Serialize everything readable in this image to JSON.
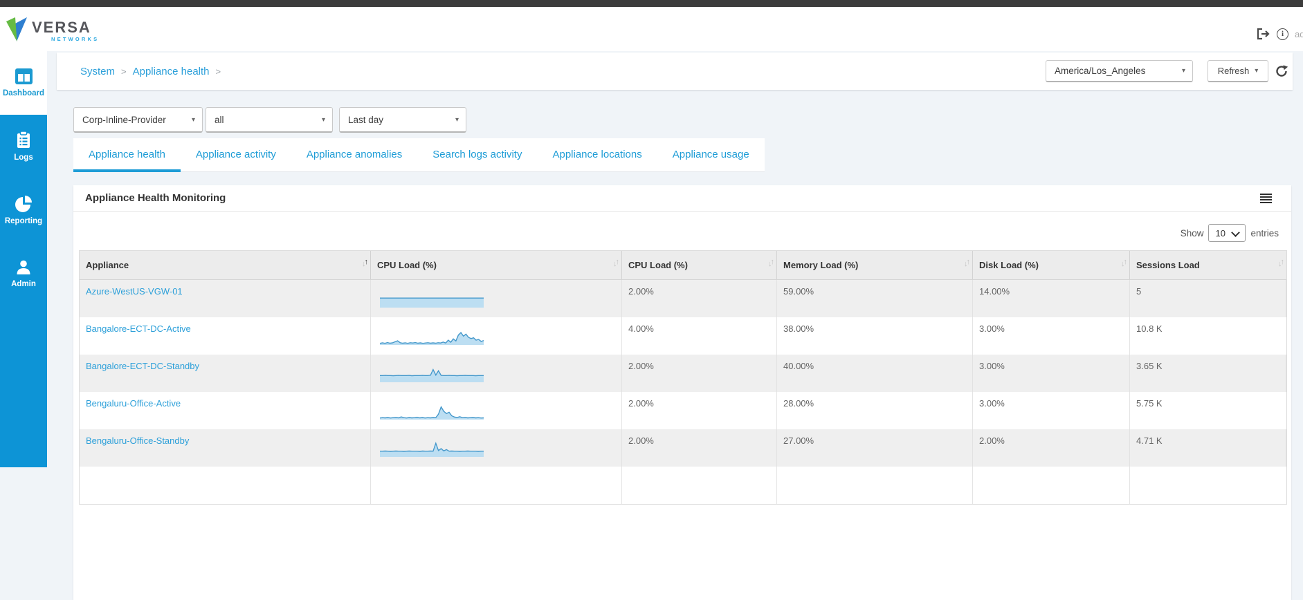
{
  "header": {
    "brand": "VERSA",
    "brand_sub": "NETWORKS",
    "user": "admin"
  },
  "icons": {
    "logout": "logout-icon",
    "info": "info-icon",
    "refresh": "refresh-icon",
    "menu": "table-menu-icon",
    "caret": "▾",
    "sort_up": "↑",
    "sort_down": "↓"
  },
  "sidebar": [
    {
      "label": "Dashboard",
      "active": true
    },
    {
      "label": "Logs",
      "active": false
    },
    {
      "label": "Reporting",
      "active": false
    },
    {
      "label": "Admin",
      "active": false
    }
  ],
  "breadcrumb": {
    "links": [
      "System",
      "Appliance health"
    ],
    "separator": ">"
  },
  "controls": {
    "timezone": "America/Los_Angeles",
    "refresh": "Refresh"
  },
  "filters": {
    "tenant": "Corp-Inline-Provider",
    "appliance": "all",
    "timerange": "Last day"
  },
  "tabs": [
    "Appliance health",
    "Appliance activity",
    "Appliance anomalies",
    "Search logs activity",
    "Appliance locations",
    "Appliance usage"
  ],
  "active_tab": "Appliance health",
  "card": {
    "title": "Appliance Health Monitoring"
  },
  "entries": {
    "show": "Show",
    "count": "10",
    "label": "entries"
  },
  "table": {
    "columns": [
      "Appliance",
      "CPU Load (%)",
      "CPU Load (%)",
      "Memory Load (%)",
      "Disk Load (%)",
      "Sessions Load"
    ],
    "rows": [
      {
        "name": "Azure-WestUS-VGW-01",
        "cpu": "2.00%",
        "memory": "59.00%",
        "disk": "14.00%",
        "sessions": "5",
        "sparkline": [
          0.6,
          0.6,
          0.6,
          0.6,
          0.6,
          0.6,
          0.6,
          0.6,
          0.6,
          0.6,
          0.6,
          0.6,
          0.6,
          0.6,
          0.6,
          0.6,
          0.6,
          0.6,
          0.6,
          0.6,
          0.6,
          0.6,
          0.6,
          0.6,
          0.6,
          0.6,
          0.6,
          0.6,
          0.6,
          0.6
        ]
      },
      {
        "name": "Bangalore-ECT-DC-Active",
        "cpu": "4.00%",
        "memory": "38.00%",
        "disk": "3.00%",
        "sessions": "10.8 K",
        "sparkline": [
          0.1,
          0.13,
          0.1,
          0.15,
          0.11,
          0.13,
          0.2,
          0.26,
          0.14,
          0.11,
          0.13,
          0.1,
          0.14,
          0.12,
          0.15,
          0.11,
          0.13,
          0.1,
          0.12,
          0.14,
          0.11,
          0.13,
          0.11,
          0.14,
          0.12,
          0.18,
          0.12,
          0.3,
          0.17,
          0.38,
          0.25,
          0.62,
          0.78,
          0.55,
          0.68,
          0.48,
          0.4,
          0.45,
          0.3,
          0.35,
          0.22,
          0.28
        ]
      },
      {
        "name": "Bangalore-ECT-DC-Standby",
        "cpu": "2.00%",
        "memory": "40.00%",
        "disk": "3.00%",
        "sessions": "3.65 K",
        "sparkline": [
          0.42,
          0.42,
          0.43,
          0.42,
          0.42,
          0.41,
          0.42,
          0.43,
          0.42,
          0.42,
          0.42,
          0.43,
          0.41,
          0.42,
          0.42,
          0.42,
          0.43,
          0.42,
          0.42,
          0.44,
          0.8,
          0.45,
          0.72,
          0.43,
          0.42,
          0.42,
          0.43,
          0.42,
          0.42,
          0.41,
          0.42,
          0.42,
          0.43,
          0.42,
          0.42,
          0.42,
          0.41,
          0.42,
          0.42,
          0.42
        ]
      },
      {
        "name": "Bengaluru-Office-Active",
        "cpu": "2.00%",
        "memory": "28.00%",
        "disk": "3.00%",
        "sessions": "5.75 K",
        "sparkline": [
          0.1,
          0.12,
          0.11,
          0.13,
          0.1,
          0.12,
          0.14,
          0.11,
          0.17,
          0.12,
          0.1,
          0.13,
          0.11,
          0.12,
          0.15,
          0.11,
          0.13,
          0.1,
          0.12,
          0.11,
          0.13,
          0.12,
          0.34,
          0.8,
          0.52,
          0.38,
          0.46,
          0.24,
          0.16,
          0.13,
          0.18,
          0.12,
          0.14,
          0.11,
          0.12,
          0.13,
          0.11,
          0.12,
          0.1,
          0.11
        ]
      },
      {
        "name": "Bengaluru-Office-Standby",
        "cpu": "2.00%",
        "memory": "27.00%",
        "disk": "2.00%",
        "sessions": "4.71 K",
        "sparkline": [
          0.36,
          0.36,
          0.37,
          0.36,
          0.35,
          0.36,
          0.37,
          0.36,
          0.36,
          0.35,
          0.36,
          0.37,
          0.36,
          0.36,
          0.36,
          0.35,
          0.37,
          0.36,
          0.36,
          0.37,
          0.36,
          0.86,
          0.4,
          0.52,
          0.38,
          0.46,
          0.36,
          0.37,
          0.36,
          0.36,
          0.35,
          0.36,
          0.36,
          0.37,
          0.36,
          0.36,
          0.36,
          0.35,
          0.36,
          0.36
        ]
      }
    ]
  },
  "colors": {
    "accent": "#1d9cd6",
    "sidebar": "#0d94d6",
    "topbar": "#3c3c3c",
    "link": "#2b9fd9",
    "spark_line": "#4498cb",
    "spark_fill": "#bcdef2",
    "page_bg": "#f0f4f8"
  }
}
